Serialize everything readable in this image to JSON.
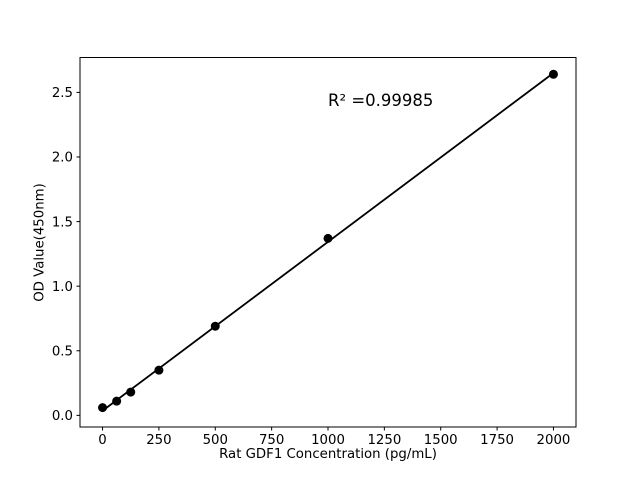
{
  "chart_data": {
    "type": "scatter",
    "title": "",
    "xlabel": "Rat GDF1 Concentration (pg/mL)",
    "ylabel": "OD Value(450nm)",
    "annotation": "R² =0.99985",
    "x": [
      0,
      62.5,
      125,
      250,
      500,
      1000,
      2000
    ],
    "y": [
      0.06,
      0.11,
      0.18,
      0.35,
      0.69,
      1.37,
      2.64
    ],
    "fit_line": {
      "x": [
        0,
        2000
      ],
      "y": [
        0.036,
        2.65
      ]
    },
    "xtick_values": [
      0,
      250,
      500,
      750,
      1000,
      1250,
      1500,
      1750,
      2000
    ],
    "xtick_labels": [
      "0",
      "250",
      "500",
      "750",
      "1000",
      "1250",
      "1500",
      "1750",
      "2000"
    ],
    "ytick_values": [
      0.0,
      0.5,
      1.0,
      1.5,
      2.0,
      2.5
    ],
    "ytick_labels": [
      "0.0",
      "0.5",
      "1.0",
      "1.5",
      "2.0",
      "2.5"
    ],
    "xlim": [
      -100,
      2100
    ],
    "ylim": [
      -0.09,
      2.77
    ],
    "grid": false,
    "legend": null,
    "colors": {
      "axis": "#000000",
      "marker": "#000000",
      "line": "#000000",
      "text": "#000000",
      "background": "#ffffff"
    },
    "marker_radius": 4.5,
    "line_width": 1.8
  }
}
